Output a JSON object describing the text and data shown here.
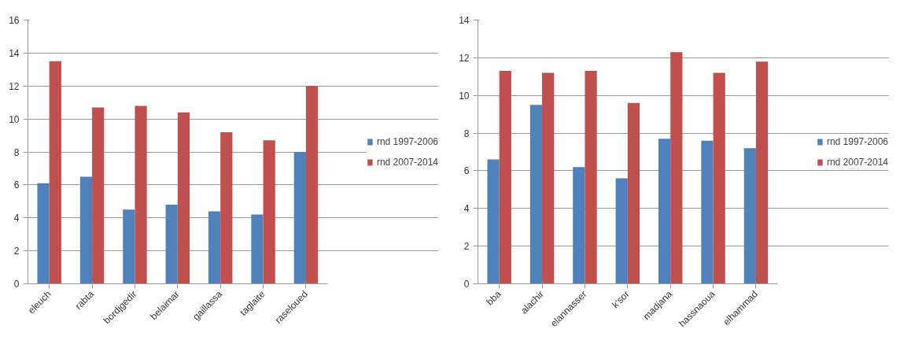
{
  "chart_data": [
    {
      "type": "bar",
      "categories": [
        "eleuch",
        "rabta",
        "bordjgedir",
        "belaimar",
        "gaillassa",
        "taglaite",
        "raseloued"
      ],
      "series": [
        {
          "name": "rnd 1997-2006",
          "color": "#4f81bd",
          "values": [
            6.1,
            6.5,
            4.5,
            4.8,
            4.4,
            4.2,
            8.0
          ]
        },
        {
          "name": "rnd 2007-2014",
          "color": "#c0504d",
          "values": [
            13.5,
            10.7,
            10.8,
            10.4,
            9.2,
            8.7,
            12.0
          ]
        }
      ],
      "ylim": [
        0,
        16
      ],
      "yticks": [
        0,
        2,
        4,
        6,
        8,
        10,
        12,
        14,
        16
      ],
      "grid": "y",
      "legend": "right"
    },
    {
      "type": "bar",
      "categories": [
        "bba",
        "alachir",
        "elannasser",
        "k'sor",
        "madjana",
        "hassnaoua",
        "elhammad"
      ],
      "series": [
        {
          "name": "rnd 1997-2006",
          "color": "#4f81bd",
          "values": [
            6.6,
            9.5,
            6.2,
            5.6,
            7.7,
            7.6,
            7.2
          ]
        },
        {
          "name": "rnd 2007-2014",
          "color": "#c0504d",
          "values": [
            11.3,
            11.2,
            11.3,
            9.6,
            12.3,
            11.2,
            11.8
          ]
        }
      ],
      "ylim": [
        0,
        14
      ],
      "yticks": [
        0,
        2,
        4,
        6,
        8,
        10,
        12,
        14
      ],
      "grid": "y",
      "legend": "right"
    }
  ]
}
